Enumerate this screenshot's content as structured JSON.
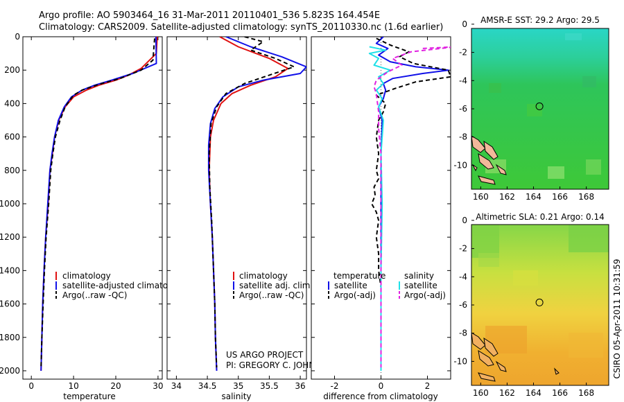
{
  "title_line1": "Argo profile: AO 5903464_16 31-Mar-2011 20110401_536 5.823S 164.454E",
  "title_line2": "Climatology: CARS2009. Satellite-adjusted climatology: synTS_20110330.nc (1.6d earlier)",
  "footer": [
    "US ARGO PROJECT",
    "PI: GREGORY C. JOHNSON"
  ],
  "stamp": "CSIRO 05-Apr-2011 10:31:59",
  "colors": {
    "climatology": "#e01010",
    "satellite": "#1010e8",
    "argo": "#000000",
    "salinity": "#20e0e8",
    "argo_adj_sal": "#e020e0"
  },
  "chart_data": [
    {
      "type": "line",
      "name": "temperature",
      "xlabel": "temperature",
      "xlim": [
        -2,
        31
      ],
      "ylim": [
        2050,
        0
      ],
      "xticks": [
        0,
        10,
        20,
        30
      ],
      "yticks": [
        0,
        200,
        400,
        600,
        800,
        1000,
        1200,
        1400,
        1600,
        1800,
        2000
      ],
      "legend": [
        "climatology",
        "satellite-adjusted climatology",
        "Argo(..raw -QC)"
      ],
      "series": [
        {
          "name": "climatology",
          "style": "solid",
          "color": "#e01010",
          "points": [
            [
              29.8,
              0
            ],
            [
              29.6,
              100
            ],
            [
              26,
              190
            ],
            [
              23,
              230
            ],
            [
              20,
              260
            ],
            [
              16,
              290
            ],
            [
              13,
              320
            ],
            [
              10,
              360
            ],
            [
              8,
              420
            ],
            [
              6.5,
              500
            ],
            [
              5.5,
              600
            ],
            [
              5,
              700
            ],
            [
              4.4,
              800
            ],
            [
              4,
              1000
            ],
            [
              3.4,
              1200
            ],
            [
              3,
              1400
            ],
            [
              2.7,
              1600
            ],
            [
              2.5,
              1800
            ],
            [
              2.3,
              2000
            ]
          ]
        },
        {
          "name": "satellite-adjusted climatology",
          "style": "solid",
          "color": "#1010e8",
          "points": [
            [
              29.5,
              0
            ],
            [
              29.6,
              160
            ],
            [
              24,
              220
            ],
            [
              19,
              260
            ],
            [
              15,
              290
            ],
            [
              12,
              320
            ],
            [
              9.5,
              360
            ],
            [
              7.8,
              420
            ],
            [
              6.4,
              500
            ],
            [
              5.5,
              600
            ],
            [
              4.9,
              700
            ],
            [
              4.4,
              800
            ],
            [
              3.9,
              1000
            ],
            [
              3.4,
              1200
            ],
            [
              3,
              1400
            ],
            [
              2.7,
              1600
            ],
            [
              2.5,
              1800
            ],
            [
              2.3,
              2000
            ]
          ]
        },
        {
          "name": "Argo(..raw -QC)",
          "style": "dash",
          "color": "#000000",
          "points": [
            [
              29.2,
              10
            ],
            [
              28.8,
              140
            ],
            [
              26,
              200
            ],
            [
              21,
              250
            ],
            [
              16,
              285
            ],
            [
              12,
              320
            ],
            [
              10,
              350
            ],
            [
              8,
              420
            ],
            [
              6.8,
              500
            ],
            [
              5.7,
              600
            ],
            [
              5.1,
              700
            ],
            [
              4.6,
              800
            ],
            [
              4.1,
              1000
            ],
            [
              3.5,
              1200
            ],
            [
              3.1,
              1400
            ],
            [
              2.8,
              1600
            ],
            [
              2.5,
              1800
            ],
            [
              2.3,
              1980
            ]
          ]
        }
      ]
    },
    {
      "type": "line",
      "name": "salinity",
      "xlabel": "salinity",
      "xlim": [
        33.85,
        36.1
      ],
      "ylim": [
        2050,
        0
      ],
      "xticks": [
        34,
        34.5,
        35,
        35.5,
        36
      ],
      "legend": [
        "climatology",
        "satellite adj. clim.",
        "Argo(..raw -QC)"
      ],
      "series": [
        {
          "name": "climatology",
          "style": "solid",
          "color": "#e01010",
          "points": [
            [
              34.7,
              0
            ],
            [
              35,
              60
            ],
            [
              35.5,
              130
            ],
            [
              35.8,
              190
            ],
            [
              35.6,
              240
            ],
            [
              35.2,
              290
            ],
            [
              34.9,
              340
            ],
            [
              34.72,
              400
            ],
            [
              34.6,
              500
            ],
            [
              34.55,
              600
            ],
            [
              34.53,
              800
            ],
            [
              34.55,
              1000
            ],
            [
              34.58,
              1200
            ],
            [
              34.6,
              1400
            ],
            [
              34.62,
              1600
            ],
            [
              34.63,
              1800
            ],
            [
              34.65,
              2000
            ]
          ]
        },
        {
          "name": "satellite adj. clim.",
          "style": "solid",
          "color": "#1010e8",
          "points": [
            [
              34.8,
              0
            ],
            [
              35.2,
              60
            ],
            [
              35.7,
              120
            ],
            [
              36.1,
              180
            ],
            [
              36.0,
              220
            ],
            [
              35.4,
              260
            ],
            [
              35,
              300
            ],
            [
              34.75,
              360
            ],
            [
              34.62,
              430
            ],
            [
              34.55,
              520
            ],
            [
              34.52,
              650
            ],
            [
              34.52,
              800
            ],
            [
              34.55,
              1000
            ],
            [
              34.58,
              1200
            ],
            [
              34.6,
              1400
            ],
            [
              34.62,
              1600
            ],
            [
              34.63,
              1800
            ],
            [
              34.65,
              2000
            ]
          ]
        },
        {
          "name": "Argo(..raw -QC)",
          "style": "dash",
          "color": "#000000",
          "points": [
            [
              35.1,
              0
            ],
            [
              35.4,
              30
            ],
            [
              35.2,
              80
            ],
            [
              35.6,
              130
            ],
            [
              35.9,
              180
            ],
            [
              35.5,
              230
            ],
            [
              35.1,
              280
            ],
            [
              34.8,
              340
            ],
            [
              34.65,
              420
            ],
            [
              34.56,
              520
            ],
            [
              34.53,
              700
            ],
            [
              34.54,
              900
            ],
            [
              34.57,
              1100
            ],
            [
              34.6,
              1400
            ],
            [
              34.62,
              1600
            ],
            [
              34.63,
              1800
            ],
            [
              34.65,
              1980
            ]
          ]
        }
      ]
    },
    {
      "type": "line",
      "name": "difference",
      "xlabel": "difference from climatology",
      "xlim": [
        -3,
        3
      ],
      "ylim": [
        2050,
        0
      ],
      "xticks": [
        -2,
        0,
        2
      ],
      "legend_headers": [
        "temperature",
        "salinity"
      ],
      "legend": [
        "satellite",
        "Argo(-adj)",
        "satellite",
        "Argo(-adj)"
      ],
      "series": [
        {
          "name": "temperature satellite",
          "style": "solid",
          "color": "#1010e8",
          "points": [
            [
              0.1,
              0
            ],
            [
              -0.2,
              40
            ],
            [
              0.3,
              70
            ],
            [
              -0.1,
              110
            ],
            [
              0.4,
              150
            ],
            [
              1.5,
              180
            ],
            [
              2.9,
              200
            ],
            [
              1.8,
              220
            ],
            [
              0.5,
              250
            ],
            [
              0.1,
              280
            ],
            [
              0.2,
              320
            ],
            [
              0.1,
              370
            ],
            [
              -0.1,
              420
            ],
            [
              0.05,
              500
            ],
            [
              0,
              700
            ],
            [
              0,
              1000
            ],
            [
              0,
              1400
            ],
            [
              0,
              1800
            ],
            [
              0,
              2000
            ]
          ]
        },
        {
          "name": "temperature Argo(-adj)",
          "style": "dash",
          "color": "#000000",
          "points": [
            [
              -0.2,
              10
            ],
            [
              0.4,
              50
            ],
            [
              1.2,
              90
            ],
            [
              0.8,
              120
            ],
            [
              1.4,
              160
            ],
            [
              2.9,
              200
            ],
            [
              3,
              240
            ],
            [
              1.5,
              270
            ],
            [
              0.6,
              310
            ],
            [
              -0.2,
              350
            ],
            [
              0.2,
              400
            ],
            [
              0.1,
              450
            ],
            [
              -0.1,
              500
            ],
            [
              -0.2,
              600
            ],
            [
              -0.1,
              700
            ],
            [
              -0.2,
              800
            ],
            [
              -0.1,
              850
            ],
            [
              -0.3,
              900
            ],
            [
              -0.25,
              950
            ],
            [
              -0.4,
              1000
            ],
            [
              -0.2,
              1050
            ],
            [
              -0.1,
              1100
            ],
            [
              -0.2,
              1200
            ],
            [
              -0.1,
              1300
            ],
            [
              -0.1,
              1400
            ],
            [
              0,
              1500
            ],
            [
              0,
              1600
            ],
            [
              0,
              1800
            ],
            [
              0,
              1980
            ]
          ]
        },
        {
          "name": "salinity satellite",
          "style": "solid",
          "color": "#20e0e8",
          "points": [
            [
              -0.5,
              60
            ],
            [
              0.2,
              80
            ],
            [
              -0.5,
              100
            ],
            [
              -0.1,
              130
            ],
            [
              -0.3,
              170
            ],
            [
              0.4,
              200
            ],
            [
              -0.1,
              240
            ],
            [
              0.1,
              280
            ],
            [
              -0.2,
              320
            ],
            [
              0.05,
              370
            ],
            [
              -0.1,
              420
            ],
            [
              0.1,
              500
            ],
            [
              0,
              700
            ],
            [
              0.05,
              1000
            ],
            [
              0,
              1400
            ],
            [
              0,
              1800
            ],
            [
              0,
              2000
            ]
          ]
        },
        {
          "name": "salinity Argo(-adj)",
          "style": "dash",
          "color": "#e020e0",
          "points": [
            [
              1.8,
              70
            ],
            [
              3.2,
              60
            ],
            [
              1.3,
              90
            ],
            [
              0.5,
              130
            ],
            [
              0.9,
              170
            ],
            [
              0.3,
              210
            ],
            [
              -0.2,
              260
            ],
            [
              -0.3,
              300
            ],
            [
              -0.2,
              340
            ],
            [
              -0.15,
              400
            ],
            [
              -0.1,
              450
            ],
            [
              -0.1,
              550
            ],
            [
              0,
              700
            ],
            [
              0,
              1000
            ],
            [
              0,
              1400
            ],
            [
              0,
              1800
            ],
            [
              0,
              1980
            ]
          ]
        }
      ]
    },
    {
      "type": "heatmap",
      "name": "sst_map",
      "title": "AMSR-E SST: 29.2 Argo: 29.5",
      "xlim": [
        159.3,
        169.7
      ],
      "ylim": [
        -11.7,
        -0.3
      ],
      "xticks": [
        160,
        162,
        164,
        166,
        168
      ],
      "yticks": [
        0,
        -2,
        -4,
        -6,
        -8,
        -10
      ],
      "marker": {
        "lon": 164.454,
        "lat": -5.823
      }
    },
    {
      "type": "heatmap",
      "name": "sla_map",
      "title": "Altimetric SLA: 0.21 Argo: 0.14",
      "xlim": [
        159.3,
        169.7
      ],
      "ylim": [
        -11.7,
        -0.3
      ],
      "xticks": [
        160,
        162,
        164,
        166,
        168
      ],
      "yticks": [
        0,
        -2,
        -4,
        -6,
        -8,
        -10
      ],
      "marker": {
        "lon": 164.454,
        "lat": -5.823
      }
    }
  ]
}
